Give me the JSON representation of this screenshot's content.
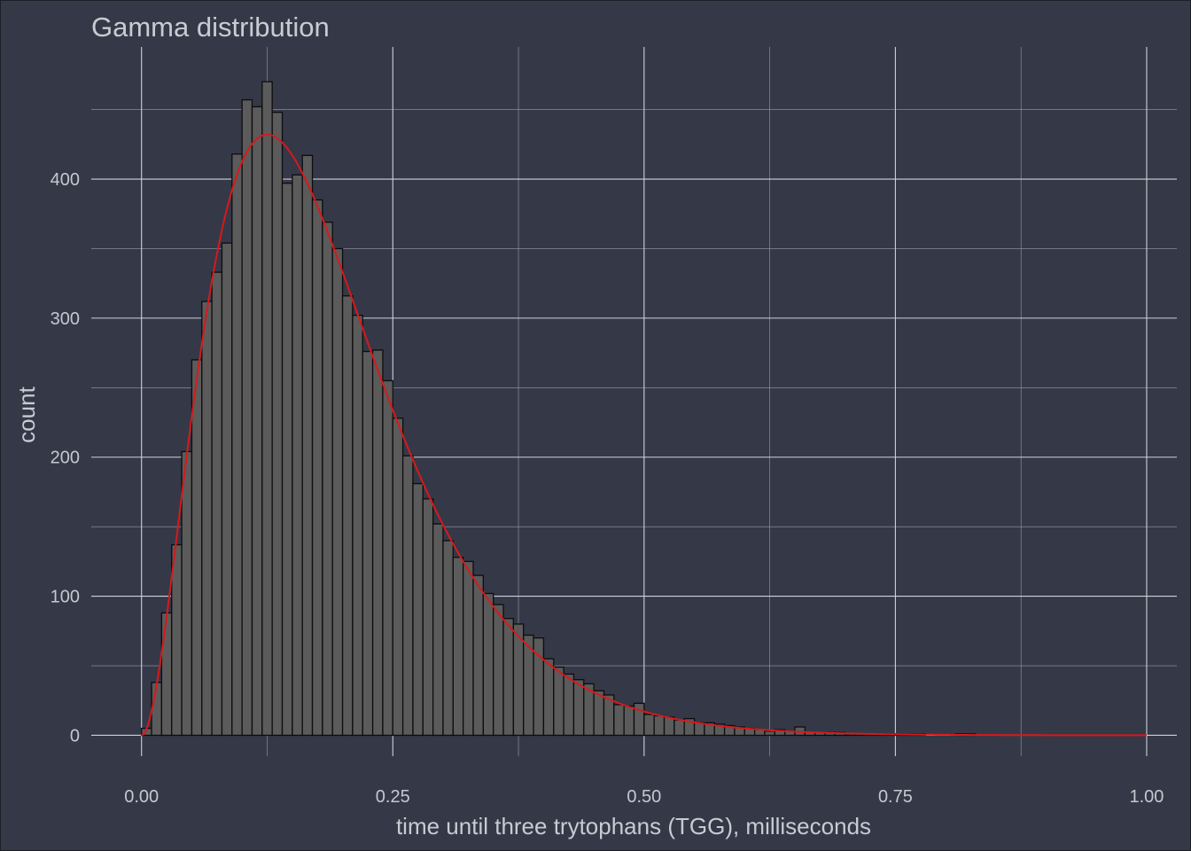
{
  "chart_data": {
    "type": "bar",
    "title": "Gamma distribution",
    "xlabel": "time until three trytophans (TGG), milliseconds",
    "ylabel": "count",
    "xlim": [
      -0.05,
      1.03
    ],
    "ylim": [
      -15,
      495
    ],
    "x_ticks": [
      {
        "value": 0.0,
        "label": "0.00"
      },
      {
        "value": 0.25,
        "label": "0.25"
      },
      {
        "value": 0.5,
        "label": "0.50"
      },
      {
        "value": 0.75,
        "label": "0.75"
      },
      {
        "value": 1.0,
        "label": "1.00"
      }
    ],
    "y_ticks": [
      {
        "value": 0,
        "label": "0"
      },
      {
        "value": 100,
        "label": "100"
      },
      {
        "value": 200,
        "label": "200"
      },
      {
        "value": 300,
        "label": "300"
      },
      {
        "value": 400,
        "label": "400"
      }
    ],
    "grid": true,
    "bin_width": 0.01,
    "bins_start": 0.0,
    "counts": [
      5,
      38,
      88,
      137,
      204,
      270,
      312,
      333,
      354,
      418,
      457,
      452,
      470,
      448,
      397,
      403,
      417,
      385,
      369,
      350,
      316,
      302,
      276,
      277,
      255,
      228,
      201,
      181,
      170,
      152,
      140,
      128,
      125,
      115,
      102,
      94,
      84,
      80,
      72,
      70,
      55,
      49,
      44,
      40,
      37,
      32,
      29,
      22,
      21,
      23,
      15,
      14,
      13,
      11,
      12,
      9,
      9,
      8,
      7,
      6,
      5,
      4,
      3,
      4,
      3,
      6,
      2,
      2,
      2,
      2,
      1,
      1,
      1,
      1,
      1,
      1,
      1,
      1,
      0,
      0,
      0,
      1,
      1,
      0,
      0,
      0,
      0,
      0,
      0,
      0,
      0,
      0,
      0,
      0,
      0,
      0,
      0,
      0,
      0,
      0
    ],
    "overlay": {
      "type": "gamma-density",
      "color": "#d7191c",
      "shape": 3,
      "peak_x": 0.125,
      "peak_y": 432
    },
    "colors": {
      "background": "#353847",
      "bar_fill": "#5b5b5b",
      "bar_stroke": "#0d0d0d",
      "grid": "#cfd1d8",
      "text": "#c6c8cf"
    }
  }
}
